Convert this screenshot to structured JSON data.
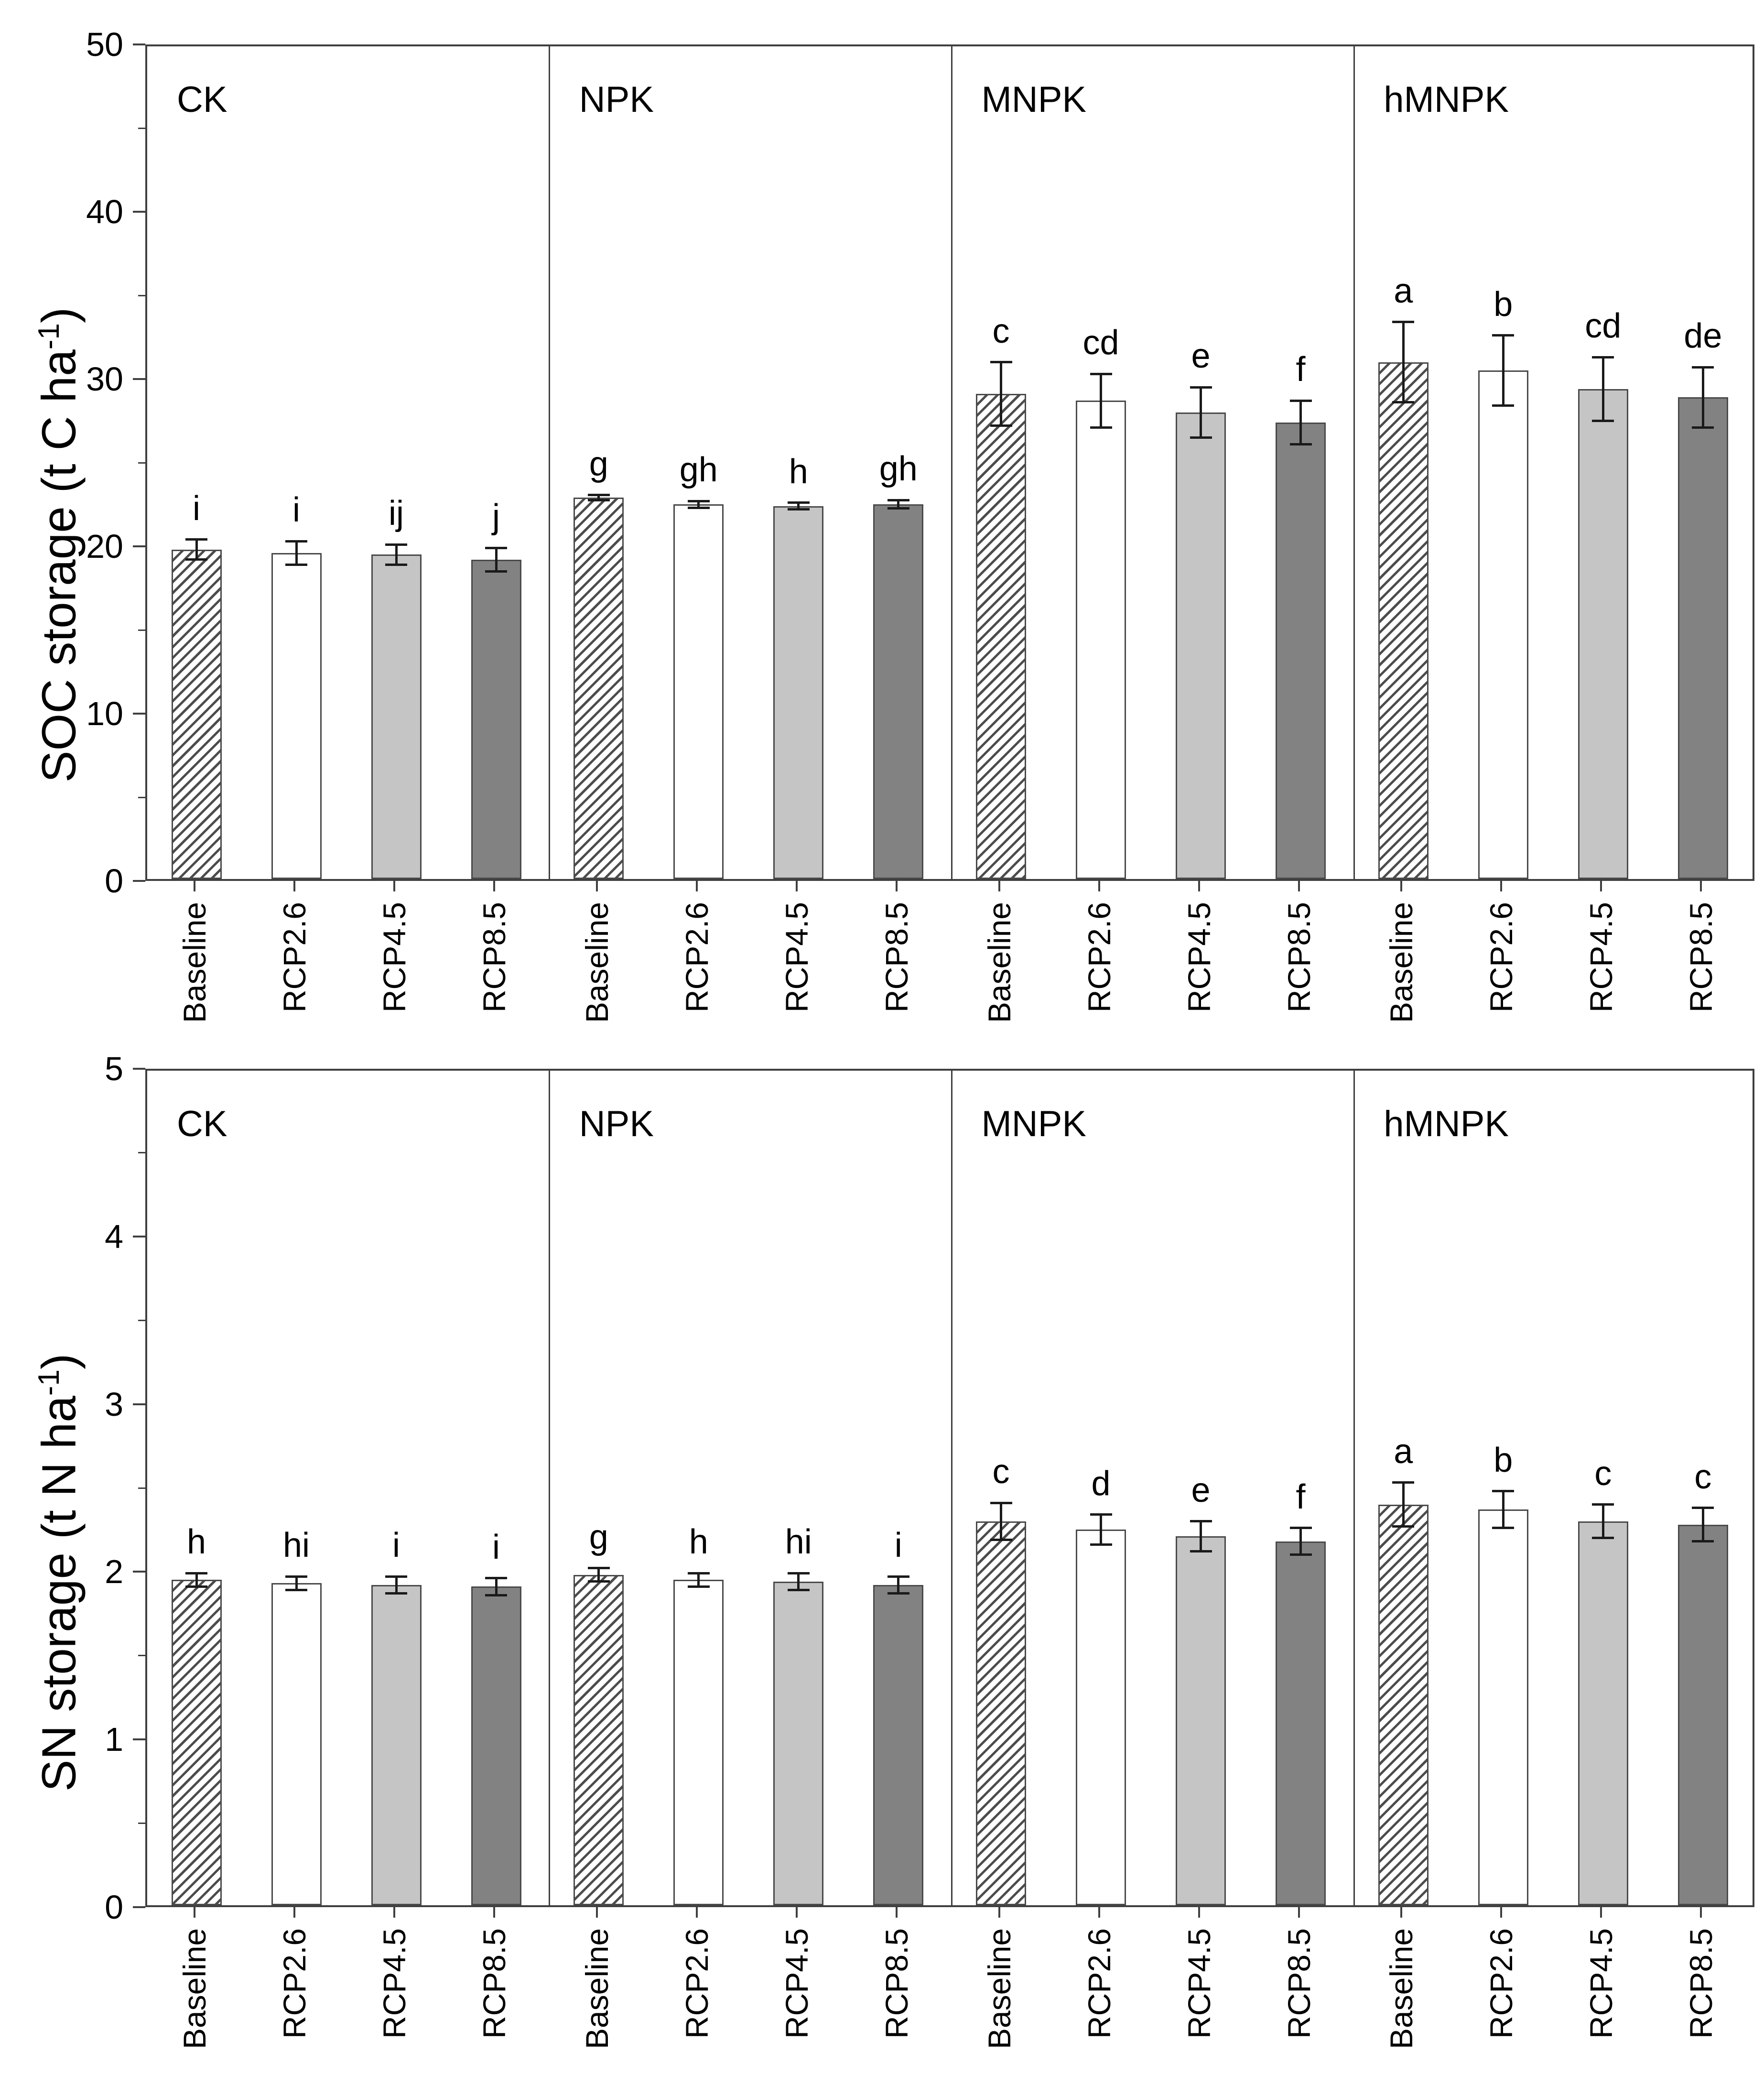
{
  "figure": {
    "background": "#ffffff",
    "description": "Two-panel grouped bar chart of SOC storage and SN storage under four fertilization treatments and four climate scenarios"
  },
  "colors": {
    "axis": "#3f3f3f",
    "bar_edge": "#4a4a4a",
    "hatch_stroke": "#4c4c4c",
    "error_bar": "#1a1a1a",
    "text": "#000000",
    "light_gray_fill": "#c5c5c5",
    "dark_gray_fill": "#828282",
    "white_fill": "#ffffff"
  },
  "bar_styles": {
    "Baseline": {
      "fill": "#ffffff",
      "hatch": true
    },
    "RCP2.6": {
      "fill": "#ffffff",
      "hatch": false
    },
    "RCP4.5": {
      "fill": "#c5c5c5",
      "hatch": false
    },
    "RCP8.5": {
      "fill": "#828282",
      "hatch": false
    }
  },
  "chart_data": [
    {
      "type": "bar",
      "id": "soc",
      "ylabel": {
        "pre": "SOC storage (t C ha",
        "sup": "-1",
        "post": ")"
      },
      "ylim": [
        0,
        50
      ],
      "yticks": [
        0,
        10,
        20,
        30,
        40,
        50
      ],
      "minor_step": 5,
      "grid": false,
      "legend": "none",
      "bar_categories": [
        "Baseline",
        "RCP2.6",
        "RCP4.5",
        "RCP8.5"
      ],
      "groups": [
        {
          "label": "CK",
          "values": [
            19.7,
            19.5,
            19.4,
            19.1
          ],
          "errors": [
            0.6,
            0.7,
            0.6,
            0.7
          ],
          "letters": [
            "i",
            "i",
            "ij",
            "j"
          ]
        },
        {
          "label": "NPK",
          "values": [
            22.8,
            22.4,
            22.3,
            22.4
          ],
          "errors": [
            0.15,
            0.2,
            0.2,
            0.25
          ],
          "letters": [
            "g",
            "gh",
            "h",
            "gh"
          ]
        },
        {
          "label": "MNPK",
          "values": [
            29.0,
            28.6,
            27.9,
            27.3
          ],
          "errors": [
            1.9,
            1.6,
            1.5,
            1.3
          ],
          "letters": [
            "c",
            "cd",
            "e",
            "f"
          ]
        },
        {
          "label": "hMNPK",
          "values": [
            30.9,
            30.4,
            29.3,
            28.8
          ],
          "errors": [
            2.4,
            2.1,
            1.9,
            1.8
          ],
          "letters": [
            "a",
            "b",
            "cd",
            "de"
          ]
        }
      ]
    },
    {
      "type": "bar",
      "id": "sn",
      "ylabel": {
        "pre": "SN storage (t N ha",
        "sup": "-1",
        "post": ")"
      },
      "ylim": [
        0,
        5
      ],
      "yticks": [
        0,
        1,
        2,
        3,
        4,
        5
      ],
      "minor_step": 0.5,
      "grid": false,
      "legend": "none",
      "bar_categories": [
        "Baseline",
        "RCP2.6",
        "RCP4.5",
        "RCP8.5"
      ],
      "groups": [
        {
          "label": "CK",
          "values": [
            1.94,
            1.92,
            1.91,
            1.9
          ],
          "errors": [
            0.04,
            0.04,
            0.05,
            0.05
          ],
          "letters": [
            "h",
            "hi",
            "i",
            "i"
          ]
        },
        {
          "label": "NPK",
          "values": [
            1.97,
            1.94,
            1.93,
            1.91
          ],
          "errors": [
            0.04,
            0.04,
            0.05,
            0.05
          ],
          "letters": [
            "g",
            "h",
            "hi",
            "i"
          ]
        },
        {
          "label": "MNPK",
          "values": [
            2.29,
            2.24,
            2.2,
            2.17
          ],
          "errors": [
            0.11,
            0.09,
            0.09,
            0.08
          ],
          "letters": [
            "c",
            "d",
            "e",
            "f"
          ]
        },
        {
          "label": "hMNPK",
          "values": [
            2.39,
            2.36,
            2.29,
            2.27
          ],
          "errors": [
            0.13,
            0.11,
            0.1,
            0.1
          ],
          "letters": [
            "a",
            "b",
            "c",
            "c"
          ]
        }
      ]
    }
  ]
}
